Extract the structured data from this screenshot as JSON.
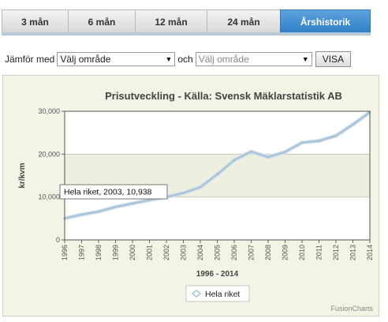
{
  "tabs": [
    {
      "label": "3 mån",
      "active": false
    },
    {
      "label": "6 mån",
      "active": false
    },
    {
      "label": "12 mån",
      "active": false
    },
    {
      "label": "24 mån",
      "active": false
    },
    {
      "label": "Årshistorik",
      "active": true
    }
  ],
  "compare": {
    "label": "Jämför med",
    "select1_value": "Välj område",
    "and_label": "och",
    "select2_placeholder": "Välj område",
    "button": "VISA"
  },
  "chart_data": {
    "type": "line",
    "title": "Prisutveckling - Källa: Svensk Mäklarstatistik AB",
    "xlabel": "1996 - 2014",
    "ylabel": "kr/kvm",
    "ylim": [
      0,
      30000
    ],
    "yticks": [
      "0",
      "10,000",
      "20,000",
      "30,000"
    ],
    "x": [
      "1996",
      "1997",
      "1998",
      "1999",
      "2000",
      "2001",
      "2002",
      "2003",
      "2004",
      "2005",
      "2006",
      "2007",
      "2008",
      "2009",
      "2010",
      "2011",
      "2012",
      "2013",
      "2014"
    ],
    "series": [
      {
        "name": "Hela riket",
        "color": "#a9c4d8",
        "values": [
          5000,
          5900,
          6600,
          7700,
          8500,
          9300,
          10000,
          10938,
          12300,
          15300,
          18600,
          20600,
          19300,
          20500,
          22700,
          23100,
          24300,
          26900,
          29800
        ]
      }
    ],
    "tooltip": "Hela riket, 2003, 10,938",
    "legend_position": "bottom",
    "grid": true,
    "band_colors": [
      "#ffffff",
      "#edefe1"
    ],
    "credit": "FusionCharts"
  }
}
